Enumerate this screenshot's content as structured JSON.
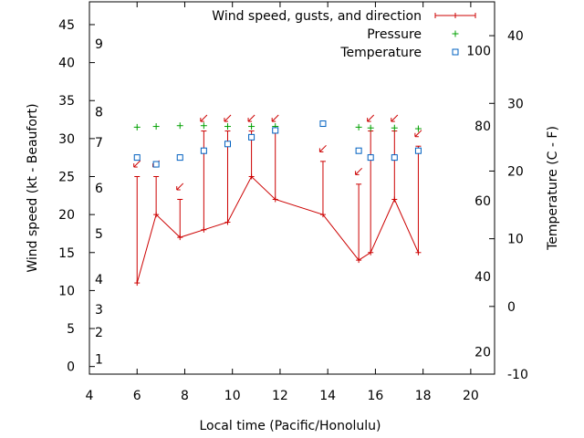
{
  "chart_data": {
    "type": "line",
    "xlabel": "Local time (Pacific/Honolulu)",
    "ylabel": "Wind speed (kt - Beaufort)",
    "y2label": "Temperature (C - F)",
    "xlim": [
      4,
      21
    ],
    "ylim": [
      -1,
      48
    ],
    "y2lim": [
      -10,
      45
    ],
    "x_ticks": [
      4,
      6,
      8,
      10,
      12,
      14,
      16,
      18,
      20
    ],
    "y_ticks": [
      0,
      5,
      10,
      15,
      20,
      25,
      30,
      35,
      40,
      45
    ],
    "y2_ticks": [
      -10,
      0,
      10,
      20,
      30,
      40
    ],
    "beaufort_labels": [
      {
        "label": "1",
        "y": 1
      },
      {
        "label": "2",
        "y": 4.5
      },
      {
        "label": "3",
        "y": 7.5
      },
      {
        "label": "4",
        "y": 11.5
      },
      {
        "label": "5",
        "y": 17.5
      },
      {
        "label": "6",
        "y": 23.5
      },
      {
        "label": "7",
        "y": 29.5
      },
      {
        "label": "8",
        "y": 33.5
      },
      {
        "label": "9",
        "y": 42.5
      }
    ],
    "fahrenheit_labels": [
      {
        "label": "20",
        "y": -6.7
      },
      {
        "label": "40",
        "y": 4.4
      },
      {
        "label": "60",
        "y": 15.6
      },
      {
        "label": "80",
        "y": 26.7
      },
      {
        "label": "100",
        "y": 37.8
      }
    ],
    "legend": {
      "placement": "top-right",
      "entries": [
        {
          "label": "Wind speed, gusts, and direction",
          "marker": "line"
        },
        {
          "label": "Pressure",
          "marker": "plus"
        },
        {
          "label": "Temperature",
          "marker": "square"
        }
      ]
    },
    "series": [
      {
        "name": "Wind speed, gusts, and direction",
        "axis": "y",
        "color": "#cc0000",
        "x": [
          6.0,
          6.8,
          7.8,
          8.8,
          9.8,
          10.8,
          11.8,
          13.8,
          15.3,
          15.8,
          16.8,
          17.8
        ],
        "values": [
          11,
          20,
          17,
          18,
          19,
          25,
          22,
          20,
          14,
          15,
          22,
          15
        ],
        "gusts": [
          25,
          25,
          22,
          31,
          31,
          31,
          31,
          27,
          24,
          31,
          31,
          29
        ],
        "direction_deg": [
          45,
          45,
          45,
          45,
          45,
          45,
          45,
          45,
          45,
          45,
          45,
          45
        ]
      },
      {
        "name": "Pressure",
        "axis": "y",
        "color": "#00a000",
        "x": [
          6.0,
          6.8,
          7.8,
          8.8,
          9.8,
          10.8,
          11.8,
          15.3,
          15.8,
          16.8,
          17.8
        ],
        "values": [
          31.5,
          31.6,
          31.7,
          31.7,
          31.6,
          31.6,
          31.6,
          31.5,
          31.4,
          31.4,
          31.3
        ]
      },
      {
        "name": "Temperature",
        "axis": "y2",
        "color": "#0060c0",
        "x": [
          6.0,
          6.8,
          7.8,
          8.8,
          9.8,
          10.8,
          11.8,
          13.8,
          15.3,
          15.8,
          16.8,
          17.8
        ],
        "values": [
          22,
          21,
          22,
          23,
          24,
          25,
          26,
          27,
          23,
          22,
          22,
          23
        ]
      }
    ]
  }
}
